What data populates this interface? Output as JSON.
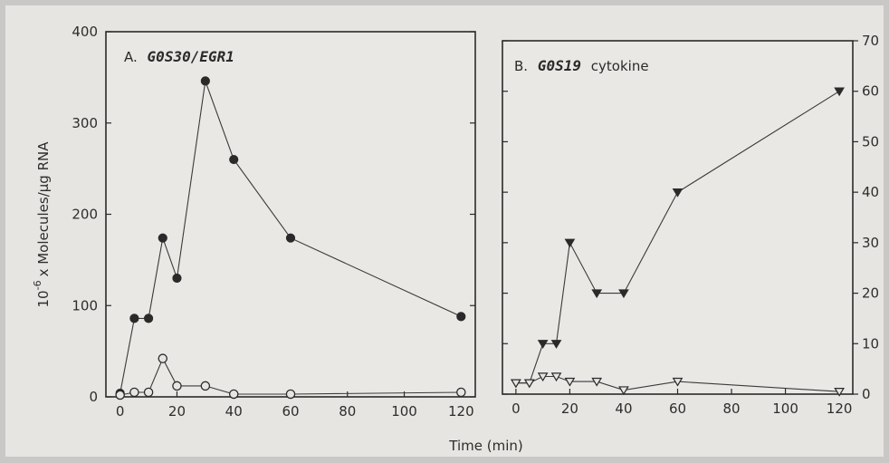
{
  "figure": {
    "xlabel": "Time (min)",
    "ylabel_left": "10",
    "ylabel_left_exp": "-6",
    "ylabel_left_rest": "x Molecules/μg RNA",
    "marker_color": "#2a2a2a",
    "background_color": "#e6e5e2"
  },
  "chart_data": [
    {
      "type": "line",
      "panel": "A",
      "title_prefix": "A.",
      "title_gene": "G0S30/EGR1",
      "title_suffix": "",
      "y_axis_side": "left",
      "xlim": [
        -5,
        125
      ],
      "ylim": [
        0,
        400
      ],
      "xticks": [
        0,
        20,
        40,
        60,
        80,
        100,
        120
      ],
      "yticks": [
        0,
        100,
        200,
        300,
        400
      ],
      "series": [
        {
          "marker": "filled-circle",
          "x": [
            0,
            5,
            10,
            15,
            20,
            30,
            40,
            60,
            120
          ],
          "y": [
            4,
            86,
            86,
            174,
            130,
            346,
            260,
            174,
            88
          ]
        },
        {
          "marker": "open-circle",
          "x": [
            0,
            5,
            10,
            15,
            20,
            30,
            40,
            60,
            120
          ],
          "y": [
            2,
            5,
            5,
            42,
            12,
            12,
            3,
            3,
            5
          ]
        }
      ]
    },
    {
      "type": "line",
      "panel": "B",
      "title_prefix": "B.",
      "title_gene": "G0S19",
      "title_suffix": "cytokine",
      "y_axis_side": "right",
      "xlim": [
        -5,
        125
      ],
      "ylim": [
        0,
        70
      ],
      "xticks": [
        0,
        20,
        40,
        60,
        80,
        100,
        120
      ],
      "yticks": [
        0,
        10,
        20,
        30,
        40,
        50,
        60,
        70
      ],
      "series": [
        {
          "marker": "filled-triangle",
          "x": [
            0,
            5,
            10,
            15,
            20,
            30,
            40,
            60,
            120
          ],
          "y": [
            2.2,
            2.2,
            10,
            10,
            30,
            20,
            20,
            40,
            60
          ]
        },
        {
          "marker": "open-triangle",
          "x": [
            0,
            5,
            10,
            15,
            20,
            30,
            40,
            60,
            120
          ],
          "y": [
            2.2,
            2.2,
            3.5,
            3.5,
            2.5,
            2.5,
            0.8,
            2.5,
            0.5
          ]
        }
      ]
    }
  ]
}
